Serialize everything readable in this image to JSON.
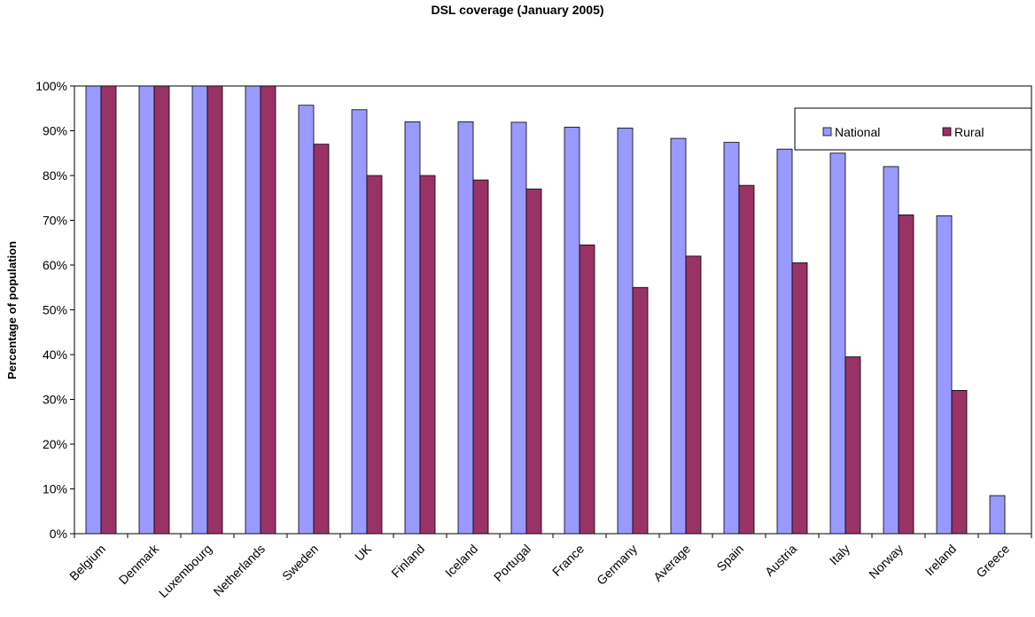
{
  "chart_data": {
    "type": "bar",
    "title": "DSL coverage (January 2005)",
    "xlabel": "",
    "ylabel": "Percentage of population",
    "ylim": [
      0,
      100
    ],
    "yticks": [
      "0%",
      "10%",
      "20%",
      "30%",
      "40%",
      "50%",
      "60%",
      "70%",
      "80%",
      "90%",
      "100%"
    ],
    "grid": false,
    "legend_position": "top-right",
    "categories": [
      "Belgium",
      "Denmark",
      "Luxembourg",
      "Netherlands",
      "Sweden",
      "UK",
      "Finland",
      "Iceland",
      "Portugal",
      "France",
      "Germany",
      "Average",
      "Spain",
      "Austria",
      "Italy",
      "Norway",
      "Ireland",
      "Greece"
    ],
    "series": [
      {
        "name": "National",
        "color": "#9999ff",
        "values": [
          100,
          100,
          100,
          100,
          95.7,
          94.7,
          92,
          92,
          91.9,
          90.8,
          90.6,
          88.3,
          87.4,
          85.9,
          85,
          82,
          71,
          8.5
        ]
      },
      {
        "name": "Rural",
        "color": "#993366",
        "values": [
          100,
          100,
          100,
          100,
          87,
          80,
          80,
          79,
          77,
          64.5,
          55,
          62,
          77.8,
          60.5,
          39.5,
          71.2,
          32,
          null
        ]
      }
    ]
  }
}
